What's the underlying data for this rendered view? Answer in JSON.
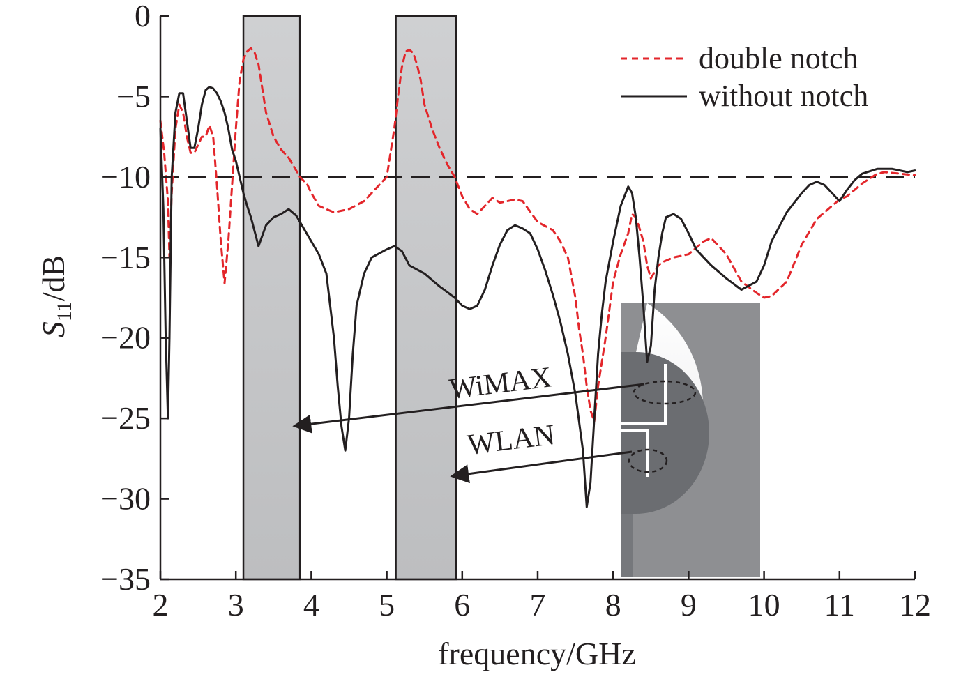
{
  "chart_data": {
    "type": "line",
    "title": "",
    "xlabel": "frequency/GHz",
    "ylabel": {
      "main": "S",
      "subscript": "11",
      "suffix": "/dB"
    },
    "xlim": [
      2,
      12
    ],
    "ylim": [
      -35,
      0
    ],
    "x_ticks": [
      2,
      3,
      4,
      5,
      6,
      7,
      8,
      9,
      10,
      11,
      12
    ],
    "x_tick_labels": [
      "2",
      "3",
      "4",
      "5",
      "6",
      "7",
      "8",
      "9",
      "10",
      "11",
      "12"
    ],
    "y_ticks": [
      0,
      -5,
      -10,
      -15,
      -20,
      -25,
      -30,
      -35
    ],
    "y_tick_labels": [
      "0",
      "−5",
      "−10",
      "−15",
      "−20",
      "−25",
      "−30",
      "−35"
    ],
    "grid": false,
    "legend_position": "top-right",
    "reference_line": {
      "y": -10,
      "style": "dashed",
      "color": "#231f20"
    },
    "shaded_bands": [
      {
        "x0": 3.1,
        "x1": 3.85,
        "color": "#c8c9cb"
      },
      {
        "x0": 5.12,
        "x1": 5.92,
        "color": "#c8c9cb"
      }
    ],
    "series": [
      {
        "name": "double notch",
        "color": "#e3262b",
        "style": "dotted",
        "x": [
          2.0,
          2.05,
          2.1,
          2.12,
          2.15,
          2.2,
          2.25,
          2.3,
          2.35,
          2.4,
          2.45,
          2.5,
          2.55,
          2.6,
          2.65,
          2.7,
          2.75,
          2.8,
          2.85,
          2.9,
          2.95,
          3.0,
          3.05,
          3.1,
          3.15,
          3.2,
          3.25,
          3.3,
          3.35,
          3.4,
          3.5,
          3.6,
          3.7,
          3.85,
          3.95,
          4.0,
          4.1,
          4.2,
          4.3,
          4.5,
          4.7,
          4.9,
          5.0,
          5.1,
          5.15,
          5.2,
          5.25,
          5.3,
          5.35,
          5.4,
          5.45,
          5.5,
          5.6,
          5.7,
          5.8,
          5.9,
          6.0,
          6.1,
          6.2,
          6.3,
          6.4,
          6.5,
          6.7,
          6.8,
          7.0,
          7.2,
          7.3,
          7.4,
          7.5,
          7.55,
          7.6,
          7.65,
          7.7,
          7.75,
          7.8,
          7.85,
          7.9,
          8.0,
          8.1,
          8.2,
          8.25,
          8.3,
          8.35,
          8.4,
          8.45,
          8.5,
          8.6,
          8.65,
          8.7,
          8.8,
          9.0,
          9.2,
          9.3,
          9.5,
          9.7,
          9.9,
          10.0,
          10.1,
          10.3,
          10.5,
          10.7,
          10.9,
          11.0,
          11.1,
          11.3,
          11.5,
          11.6,
          11.8,
          12.0
        ],
        "y": [
          -6.5,
          -8.5,
          -11.5,
          -15.0,
          -11.0,
          -7.0,
          -5.5,
          -6.0,
          -7.5,
          -8.5,
          -8.5,
          -8.0,
          -7.5,
          -7.5,
          -6.8,
          -7.5,
          -10.5,
          -14.0,
          -16.6,
          -14.0,
          -10.5,
          -7.0,
          -4.0,
          -2.7,
          -2.2,
          -2.0,
          -2.3,
          -3.0,
          -4.5,
          -6.0,
          -7.5,
          -8.3,
          -8.8,
          -10.0,
          -10.5,
          -11.0,
          -11.8,
          -12.0,
          -12.2,
          -12.0,
          -11.5,
          -10.5,
          -10.0,
          -7.0,
          -5.0,
          -3.2,
          -2.2,
          -2.1,
          -2.3,
          -3.0,
          -4.0,
          -5.5,
          -7.0,
          -8.2,
          -9.2,
          -10.0,
          -11.2,
          -12.0,
          -12.3,
          -11.8,
          -11.3,
          -11.6,
          -11.4,
          -11.5,
          -12.8,
          -13.3,
          -14.0,
          -15.0,
          -17.5,
          -19.5,
          -21.0,
          -23.0,
          -24.5,
          -25.2,
          -23.0,
          -21.5,
          -20.0,
          -16.5,
          -14.8,
          -13.5,
          -12.3,
          -12.5,
          -13.2,
          -14.0,
          -15.5,
          -16.3,
          -15.5,
          -15.3,
          -15.2,
          -15.0,
          -14.8,
          -14.0,
          -13.8,
          -14.8,
          -16.5,
          -17.2,
          -17.5,
          -17.4,
          -16.5,
          -14.2,
          -12.6,
          -11.8,
          -11.4,
          -11.2,
          -10.4,
          -9.8,
          -9.7,
          -9.8,
          -9.9
        ]
      },
      {
        "name": "without notch",
        "color": "#231f20",
        "style": "solid",
        "x": [
          2.0,
          2.04,
          2.07,
          2.1,
          2.12,
          2.15,
          2.2,
          2.25,
          2.3,
          2.35,
          2.4,
          2.45,
          2.5,
          2.55,
          2.6,
          2.65,
          2.7,
          2.75,
          2.8,
          2.85,
          2.9,
          2.95,
          3.0,
          3.05,
          3.1,
          3.15,
          3.2,
          3.3,
          3.4,
          3.5,
          3.6,
          3.7,
          3.8,
          3.9,
          4.0,
          4.1,
          4.2,
          4.3,
          4.35,
          4.4,
          4.45,
          4.5,
          4.55,
          4.6,
          4.7,
          4.8,
          5.0,
          5.1,
          5.2,
          5.3,
          5.5,
          5.7,
          5.9,
          6.0,
          6.1,
          6.2,
          6.3,
          6.4,
          6.5,
          6.6,
          6.7,
          6.8,
          6.9,
          7.0,
          7.1,
          7.2,
          7.3,
          7.4,
          7.5,
          7.6,
          7.65,
          7.7,
          7.75,
          7.8,
          7.85,
          7.9,
          8.0,
          8.1,
          8.2,
          8.25,
          8.3,
          8.35,
          8.4,
          8.45,
          8.5,
          8.55,
          8.6,
          8.65,
          8.7,
          8.8,
          8.9,
          9.0,
          9.1,
          9.2,
          9.3,
          9.5,
          9.7,
          9.9,
          10.0,
          10.1,
          10.3,
          10.5,
          10.6,
          10.7,
          10.8,
          10.9,
          11.0,
          11.1,
          11.2,
          11.3,
          11.5,
          11.7,
          11.9,
          12.0
        ],
        "y": [
          -7.0,
          -12.0,
          -20.0,
          -25.0,
          -20.0,
          -10.0,
          -6.0,
          -4.8,
          -4.8,
          -6.5,
          -8.2,
          -8.2,
          -7.0,
          -5.5,
          -4.6,
          -4.4,
          -4.5,
          -4.8,
          -5.3,
          -6.0,
          -7.0,
          -8.3,
          -9.0,
          -10.0,
          -11.0,
          -11.8,
          -12.5,
          -14.3,
          -13.0,
          -12.5,
          -12.3,
          -12.0,
          -12.4,
          -13.2,
          -14.0,
          -14.8,
          -16.0,
          -20.0,
          -23.0,
          -25.5,
          -27.0,
          -25.0,
          -21.0,
          -18.0,
          -16.0,
          -15.0,
          -14.5,
          -14.3,
          -14.6,
          -15.5,
          -16.0,
          -16.8,
          -17.5,
          -18.0,
          -18.2,
          -18.0,
          -17.0,
          -15.5,
          -14.2,
          -13.3,
          -13.0,
          -13.2,
          -13.5,
          -14.5,
          -15.8,
          -17.3,
          -19.0,
          -21.0,
          -23.5,
          -27.0,
          -30.5,
          -29.0,
          -25.0,
          -21.0,
          -18.5,
          -16.5,
          -14.0,
          -11.8,
          -10.6,
          -11.0,
          -12.5,
          -15.0,
          -18.0,
          -21.5,
          -20.5,
          -17.0,
          -15.0,
          -13.5,
          -12.5,
          -12.3,
          -12.6,
          -13.5,
          -14.5,
          -15.0,
          -15.5,
          -16.3,
          -17.0,
          -16.5,
          -15.5,
          -14.0,
          -12.2,
          -11.0,
          -10.5,
          -10.3,
          -10.5,
          -11.0,
          -11.5,
          -10.8,
          -10.2,
          -9.8,
          -9.5,
          -9.5,
          -9.7,
          -9.6
        ]
      }
    ],
    "annotations": [
      {
        "label": "WiMAX",
        "arrow_to_band": 0
      },
      {
        "label": "WLAN",
        "arrow_to_band": 1
      }
    ],
    "inset": {
      "description_name": "antenna-structure-diagram"
    }
  }
}
